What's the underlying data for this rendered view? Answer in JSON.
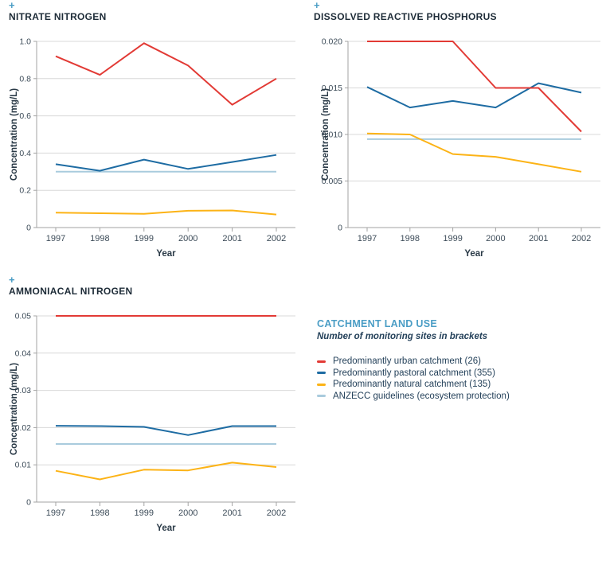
{
  "ui": {
    "expand_symbol": "+"
  },
  "colors": {
    "urban": "#e23a35",
    "pastoral": "#1e6ca3",
    "natural": "#fcb316",
    "guideline": "#a9cbdd",
    "grid": "#d8d8d8",
    "axis": "#a3a3a3",
    "heading": "#1e2c38",
    "tick_text": "#3d4c59",
    "accent_blue": "#4a9dc5",
    "legend_text": "#24415a"
  },
  "legend": {
    "title": "CATCHMENT LAND USE",
    "subtitle": "Number of monitoring sites in brackets",
    "items": [
      {
        "label": "Predominantly urban catchment (26)",
        "color": "urban"
      },
      {
        "label": "Predominantly pastoral catchment (355)",
        "color": "pastoral"
      },
      {
        "label": "Predominantly natural catchment (135)",
        "color": "natural"
      },
      {
        "label": "ANZECC guidelines (ecosystem protection)",
        "color": "guideline"
      }
    ]
  },
  "chart_data": [
    {
      "type": "line",
      "title": "NITRATE NITROGEN",
      "xlabel": "Year",
      "ylabel": "Concentration (mg/L)",
      "x": [
        1997,
        1998,
        1999,
        2000,
        2001,
        2002
      ],
      "ylim": [
        0,
        1.0
      ],
      "grid": true,
      "legend_position": "separate-panel",
      "yticks": [
        {
          "value": 0,
          "label": "0"
        },
        {
          "value": 0.2,
          "label": "0.2"
        },
        {
          "value": 0.4,
          "label": "0.4"
        },
        {
          "value": 0.6,
          "label": "0.6"
        },
        {
          "value": 0.8,
          "label": "0.8"
        },
        {
          "value": 1.0,
          "label": "1.0"
        }
      ],
      "series": [
        {
          "name": "ANZECC guidelines (ecosystem protection)",
          "color": "guideline",
          "values": [
            0.3,
            0.3,
            0.3,
            0.3,
            0.3,
            0.3
          ]
        },
        {
          "name": "Predominantly natural catchment (135)",
          "color": "natural",
          "values": [
            0.08,
            0.077,
            0.074,
            0.09,
            0.092,
            0.07
          ]
        },
        {
          "name": "Predominantly pastoral catchment (355)",
          "color": "pastoral",
          "values": [
            0.34,
            0.305,
            0.365,
            0.315,
            0.352,
            0.39
          ]
        },
        {
          "name": "Predominantly urban catchment (26)",
          "color": "urban",
          "values": [
            0.92,
            0.82,
            0.99,
            0.87,
            0.66,
            0.8
          ]
        }
      ]
    },
    {
      "type": "line",
      "title": "DISSOLVED REACTIVE PHOSPHORUS",
      "xlabel": "Year",
      "ylabel": "Concentration (mg/L)",
      "x": [
        1997,
        1998,
        1999,
        2000,
        2001,
        2002
      ],
      "ylim": [
        0,
        0.02
      ],
      "grid": true,
      "legend_position": "separate-panel",
      "yticks": [
        {
          "value": 0,
          "label": "0"
        },
        {
          "value": 0.005,
          "label": "0.005"
        },
        {
          "value": 0.01,
          "label": "0.010"
        },
        {
          "value": 0.015,
          "label": "0.015"
        },
        {
          "value": 0.02,
          "label": "0.020"
        }
      ],
      "series": [
        {
          "name": "ANZECC guidelines (ecosystem protection)",
          "color": "guideline",
          "values": [
            0.0095,
            0.0095,
            0.0095,
            0.0095,
            0.0095,
            0.0095
          ]
        },
        {
          "name": "Predominantly natural catchment (135)",
          "color": "natural",
          "values": [
            0.0101,
            0.01,
            0.0079,
            0.0076,
            0.0068,
            0.006
          ]
        },
        {
          "name": "Predominantly pastoral catchment (355)",
          "color": "pastoral",
          "values": [
            0.0151,
            0.0129,
            0.0136,
            0.0129,
            0.0155,
            0.0145
          ]
        },
        {
          "name": "Predominantly urban catchment (26)",
          "color": "urban",
          "values": [
            0.02,
            0.02,
            0.02,
            0.015,
            0.015,
            0.0103
          ]
        }
      ]
    },
    {
      "type": "line",
      "title": "AMMONIACAL NITROGEN",
      "xlabel": "Year",
      "ylabel": "Concentration (mg/L)",
      "x": [
        1997,
        1998,
        1999,
        2000,
        2001,
        2002
      ],
      "ylim": [
        0,
        0.05
      ],
      "grid": true,
      "legend_position": "separate-panel",
      "yticks": [
        {
          "value": 0,
          "label": "0"
        },
        {
          "value": 0.01,
          "label": "0.01"
        },
        {
          "value": 0.02,
          "label": "0.02"
        },
        {
          "value": 0.03,
          "label": "0.03"
        },
        {
          "value": 0.04,
          "label": "0.04"
        },
        {
          "value": 0.05,
          "label": "0.05"
        }
      ],
      "series": [
        {
          "name": "ANZECC guidelines (ecosystem protection)",
          "color": "guideline",
          "values": [
            0.0156,
            0.0156,
            0.0156,
            0.0156,
            0.0156,
            0.0156
          ]
        },
        {
          "name": "Predominantly natural catchment (135)",
          "color": "natural",
          "values": [
            0.0084,
            0.0061,
            0.0087,
            0.0085,
            0.0106,
            0.0094
          ]
        },
        {
          "name": "Predominantly pastoral catchment (355)",
          "color": "pastoral",
          "values": [
            0.0205,
            0.0204,
            0.0202,
            0.018,
            0.0204,
            0.0204
          ]
        },
        {
          "name": "Predominantly urban catchment (26)",
          "color": "urban",
          "values": [
            0.05,
            0.05,
            0.05,
            0.05,
            0.05,
            0.05
          ]
        }
      ]
    }
  ]
}
